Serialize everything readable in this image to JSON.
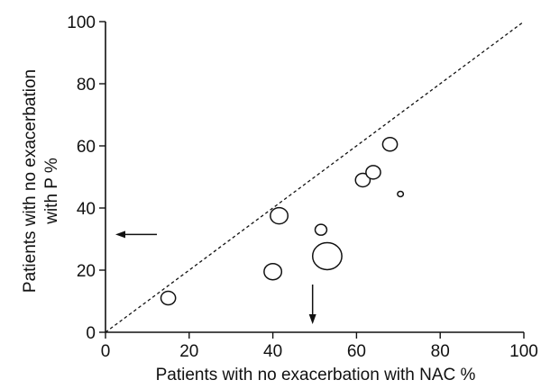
{
  "chart_data": {
    "type": "scatter",
    "title": "",
    "xlabel": "Patients with no exacerbation with NAC  %",
    "ylabel_lines": [
      "Patients with no exacerbation",
      "with P  %"
    ],
    "xlim": [
      0,
      100
    ],
    "ylim": [
      0,
      100
    ],
    "x_ticks": [
      "0",
      "20",
      "40",
      "60",
      "80",
      "100"
    ],
    "y_ticks": [
      "0",
      "20",
      "40",
      "60",
      "80",
      "100"
    ],
    "grid": false,
    "legend": "none",
    "identity_line": true,
    "points": [
      {
        "x": 15,
        "y": 11,
        "size": "medium"
      },
      {
        "x": 40,
        "y": 19.5,
        "size": "medium-large"
      },
      {
        "x": 41.5,
        "y": 37.5,
        "size": "medium-large"
      },
      {
        "x": 51.5,
        "y": 33,
        "size": "small"
      },
      {
        "x": 53,
        "y": 24.5,
        "size": "large"
      },
      {
        "x": 61.5,
        "y": 49,
        "size": "medium"
      },
      {
        "x": 64,
        "y": 51.5,
        "size": "medium"
      },
      {
        "x": 68,
        "y": 60.5,
        "size": "medium"
      },
      {
        "x": 70.5,
        "y": 44.5,
        "size": "tiny"
      }
    ],
    "arrows": [
      {
        "direction": "left",
        "near_axis": "y",
        "at_y": 31.5
      },
      {
        "direction": "down",
        "near_axis": "x",
        "at_x": 49.5
      }
    ],
    "colors": {
      "axis": "#111111",
      "marker_stroke": "#111111",
      "marker_fill": "#ffffff"
    }
  }
}
